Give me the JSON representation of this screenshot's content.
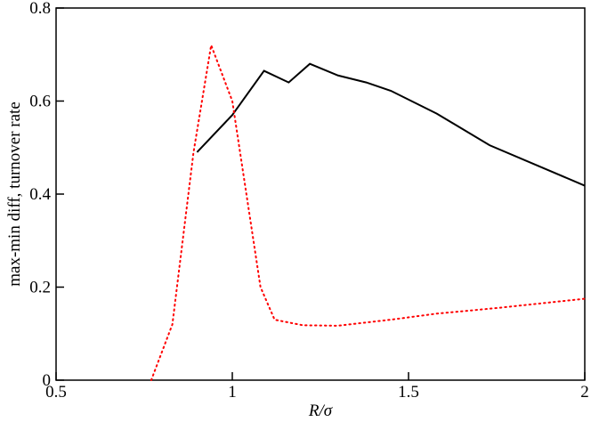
{
  "chart_data": {
    "type": "line",
    "xlabel": "R/σ",
    "ylabel": "max-min diff, turnover rate",
    "xlim": [
      0.5,
      2
    ],
    "xticks": [
      0.5,
      1,
      1.5,
      2
    ],
    "ylim": [
      0,
      0.8
    ],
    "yticks": [
      0,
      0.2,
      0.4,
      0.6,
      0.8
    ],
    "series": [
      {
        "color": "#000000",
        "line_style": "solid",
        "x": [
          0.9,
          1.0,
          1.09,
          1.16,
          1.22,
          1.3,
          1.38,
          1.45,
          1.58,
          1.73,
          1.87,
          2.0
        ],
        "values": [
          0.49,
          0.57,
          0.665,
          0.64,
          0.68,
          0.655,
          0.64,
          0.622,
          0.573,
          0.505,
          0.46,
          0.418
        ]
      },
      {
        "color": "#ff0000",
        "line_style": "dotted",
        "x": [
          0.77,
          0.83,
          0.89,
          0.94,
          1.0,
          1.04,
          1.08,
          1.12,
          1.2,
          1.3,
          1.45,
          1.58,
          1.75,
          2.0
        ],
        "values": [
          0,
          0.12,
          0.49,
          0.72,
          0.6,
          0.4,
          0.2,
          0.13,
          0.118,
          0.117,
          0.13,
          0.143,
          0.155,
          0.175
        ]
      }
    ]
  }
}
